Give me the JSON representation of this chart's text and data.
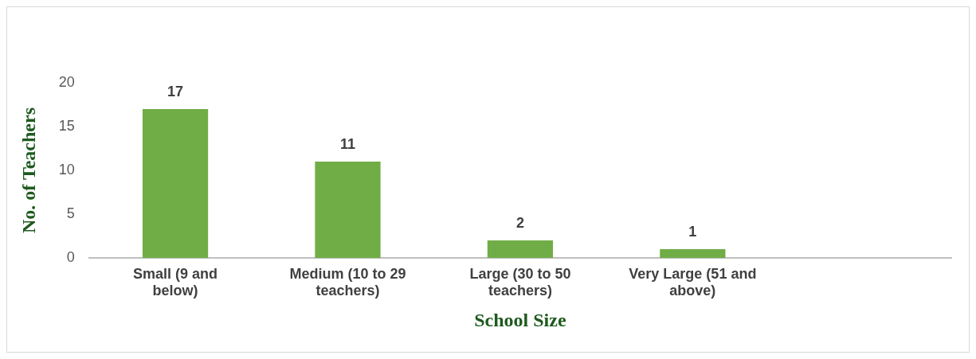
{
  "chart_data": {
    "type": "bar",
    "xlabel": "School Size",
    "ylabel": "No. of Teachers",
    "categories": [
      "Small (9 and below)",
      "Medium (10 to 29 teachers)",
      "Large (30 to 50 teachers)",
      "Very Large (51 and above)",
      null
    ],
    "values": [
      17,
      11,
      2,
      1,
      null
    ],
    "color": "#70ad47",
    "ylim": [
      0,
      20
    ],
    "yticks": [
      0,
      5,
      10,
      15,
      20
    ],
    "grid": false,
    "data_labels": true,
    "legend": false
  }
}
